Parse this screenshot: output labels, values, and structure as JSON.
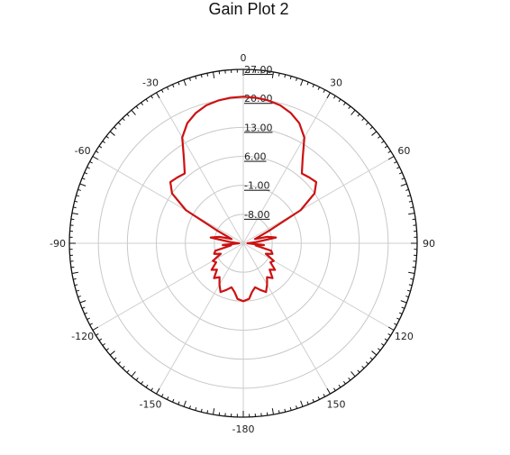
{
  "chart_data": {
    "type": "polar-line",
    "title": "Gain Plot 2",
    "radial_ticks": [
      "27.00",
      "20.00",
      "13.00",
      "6.00",
      "-1.00",
      "-8.00"
    ],
    "radial_range": [
      -15,
      27
    ],
    "radial_ring_values": [
      27,
      20,
      13,
      6,
      -1,
      -8
    ],
    "angle_ticks": [
      {
        "deg": 0,
        "label": "0"
      },
      {
        "deg": 30,
        "label": "30"
      },
      {
        "deg": 60,
        "label": "60"
      },
      {
        "deg": 90,
        "label": "90"
      },
      {
        "deg": 120,
        "label": "120"
      },
      {
        "deg": 150,
        "label": "150"
      },
      {
        "deg": 180,
        "label": "-180"
      },
      {
        "deg": -150,
        "label": "-150"
      },
      {
        "deg": -120,
        "label": "-120"
      },
      {
        "deg": -90,
        "label": "-90"
      },
      {
        "deg": -60,
        "label": "-60"
      },
      {
        "deg": -30,
        "label": "-30"
      }
    ],
    "angle_direction": "clockwise",
    "zero_at": "top",
    "grid": true,
    "line_color": "#cc1111",
    "series": [
      {
        "points": [
          {
            "angle": -180,
            "r": -1
          },
          {
            "angle": -174,
            "r": -1.5
          },
          {
            "angle": -170,
            "r": -3
          },
          {
            "angle": -165,
            "r": -4
          },
          {
            "angle": -160,
            "r": -3
          },
          {
            "angle": -155,
            "r": -2
          },
          {
            "angle": -150,
            "r": -3.5
          },
          {
            "angle": -145,
            "r": -5
          },
          {
            "angle": -140,
            "r": -4
          },
          {
            "angle": -135,
            "r": -6
          },
          {
            "angle": -130,
            "r": -5
          },
          {
            "angle": -125,
            "r": -7
          },
          {
            "angle": -120,
            "r": -6.5
          },
          {
            "angle": -115,
            "r": -9
          },
          {
            "angle": -110,
            "r": -7.5
          },
          {
            "angle": -105,
            "r": -8
          },
          {
            "angle": -100,
            "r": -12
          },
          {
            "angle": -95,
            "r": -10
          },
          {
            "angle": -90,
            "r": -14
          },
          {
            "angle": -85,
            "r": -12
          },
          {
            "angle": -80,
            "r": -7
          },
          {
            "angle": -75,
            "r": -9
          },
          {
            "angle": -70,
            "r": -12
          },
          {
            "angle": -64,
            "r": -8
          },
          {
            "angle": -60,
            "r": 1
          },
          {
            "angle": -55,
            "r": 6
          },
          {
            "angle": -50,
            "r": 8
          },
          {
            "angle": -45,
            "r": 7.5
          },
          {
            "angle": -40,
            "r": 7
          },
          {
            "angle": -35,
            "r": 10
          },
          {
            "angle": -30,
            "r": 14.5
          },
          {
            "angle": -25,
            "r": 17
          },
          {
            "angle": -20,
            "r": 18.5
          },
          {
            "angle": -15,
            "r": 19.5
          },
          {
            "angle": -10,
            "r": 20
          },
          {
            "angle": -5,
            "r": 20.3
          },
          {
            "angle": 0,
            "r": 20.4
          },
          {
            "angle": 5,
            "r": 20.3
          },
          {
            "angle": 10,
            "r": 20
          },
          {
            "angle": 15,
            "r": 19.5
          },
          {
            "angle": 20,
            "r": 18.5
          },
          {
            "angle": 25,
            "r": 17
          },
          {
            "angle": 30,
            "r": 14.5
          },
          {
            "angle": 35,
            "r": 10
          },
          {
            "angle": 40,
            "r": 7
          },
          {
            "angle": 45,
            "r": 7.5
          },
          {
            "angle": 50,
            "r": 8
          },
          {
            "angle": 55,
            "r": 6
          },
          {
            "angle": 60,
            "r": 1
          },
          {
            "angle": 64,
            "r": -8
          },
          {
            "angle": 70,
            "r": -12
          },
          {
            "angle": 75,
            "r": -9
          },
          {
            "angle": 80,
            "r": -7
          },
          {
            "angle": 85,
            "r": -12
          },
          {
            "angle": 90,
            "r": -14
          },
          {
            "angle": 95,
            "r": -10
          },
          {
            "angle": 100,
            "r": -12
          },
          {
            "angle": 105,
            "r": -8
          },
          {
            "angle": 110,
            "r": -7.5
          },
          {
            "angle": 115,
            "r": -9
          },
          {
            "angle": 120,
            "r": -6.5
          },
          {
            "angle": 125,
            "r": -7
          },
          {
            "angle": 130,
            "r": -5
          },
          {
            "angle": 135,
            "r": -6
          },
          {
            "angle": 140,
            "r": -4
          },
          {
            "angle": 145,
            "r": -5
          },
          {
            "angle": 150,
            "r": -3.5
          },
          {
            "angle": 155,
            "r": -2
          },
          {
            "angle": 160,
            "r": -3
          },
          {
            "angle": 165,
            "r": -4
          },
          {
            "angle": 170,
            "r": -3
          },
          {
            "angle": 174,
            "r": -1.5
          },
          {
            "angle": 180,
            "r": -1
          }
        ]
      }
    ]
  }
}
